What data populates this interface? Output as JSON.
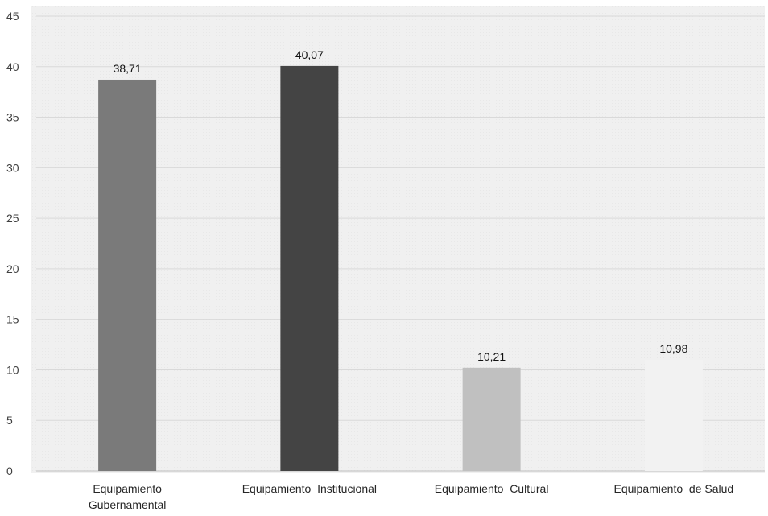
{
  "chart_data": {
    "type": "bar",
    "categories": [
      [
        "Equipamiento",
        "Gubernamental"
      ],
      [
        "Equipamiento  Institucional"
      ],
      [
        "Equipamiento  Cultural"
      ],
      [
        "Equipamiento  de Salud"
      ]
    ],
    "values": [
      38.71,
      40.07,
      10.21,
      10.98
    ],
    "data_labels": [
      "38,71",
      "40,07",
      "10,21",
      "10,98"
    ],
    "bar_colors": [
      "#7a7a7a",
      "#444444",
      "#c0c0c0",
      "#f2f2f2"
    ],
    "ylim": [
      0,
      45
    ],
    "yticks": [
      0,
      5,
      10,
      15,
      20,
      25,
      30,
      35,
      40,
      45
    ],
    "grid": true,
    "legend": "none"
  }
}
